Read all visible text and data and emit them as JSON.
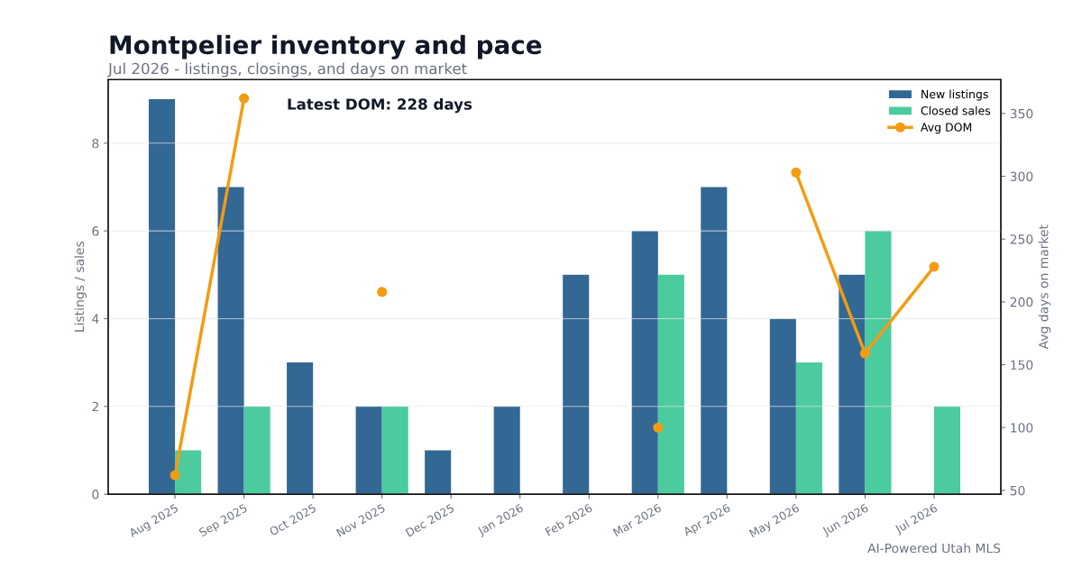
{
  "chart_data": {
    "type": "bar",
    "title": "Montpelier inventory and pace",
    "subtitle": "Jul 2026 - listings, closings, and days on market",
    "ylabel": "Listings / sales",
    "y2label": "Avg days on market",
    "categories": [
      "Aug 2025",
      "Sep 2025",
      "Oct 2025",
      "Nov 2025",
      "Dec 2025",
      "Jan 2026",
      "Feb 2026",
      "Mar 2026",
      "Apr 2026",
      "May 2026",
      "Jun 2026",
      "Jul 2026"
    ],
    "series": [
      {
        "name": "New listings",
        "color": "#336794",
        "values": [
          9,
          7,
          3,
          2,
          1,
          2,
          5,
          6,
          7,
          4,
          5,
          0
        ]
      },
      {
        "name": "Closed sales",
        "color": "#4bcb9e",
        "values": [
          1,
          2,
          0,
          2,
          0,
          0,
          0,
          5,
          0,
          3,
          6,
          2
        ]
      },
      {
        "name": "Avg DOM",
        "type": "line",
        "axis": "y2",
        "color": "#f39c12",
        "values": [
          62,
          362,
          null,
          208,
          null,
          null,
          null,
          100,
          null,
          303,
          159,
          228
        ]
      }
    ],
    "ylim": [
      0,
      9.45
    ],
    "yticks": [
      0,
      2,
      4,
      6,
      8
    ],
    "y2lim": [
      47,
      377
    ],
    "y2ticks": [
      50,
      100,
      150,
      200,
      250,
      300,
      350
    ],
    "grid": "y",
    "legend": "top right",
    "marker": "circle",
    "line_style": "solid",
    "annotations": [
      "Latest DOM: 228 days",
      "AI-Powered Utah MLS"
    ]
  }
}
